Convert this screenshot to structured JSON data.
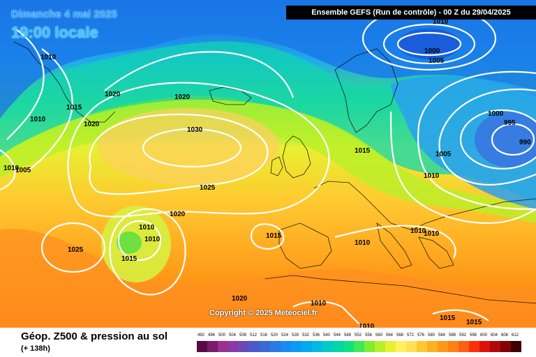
{
  "header": {
    "date_line": "Dimanche 4 mai 2025",
    "time_line": "19:00 locale",
    "run_info": "Ensemble GEFS  (Run de contrôle)  -  00 Z du 29/04/2025"
  },
  "copyright": "Copyright © 2025 Meteociel.fr",
  "footer": {
    "title": "Géop. Z500 & pression au sol",
    "subtitle": "(+ 138h)"
  },
  "isobar_labels": [
    "1010",
    "1010",
    "1015",
    "1020",
    "1020",
    "1020",
    "1010",
    "1005",
    "1030",
    "1025",
    "1020",
    "1010",
    "1010",
    "1025",
    "1015",
    "1015",
    "1020",
    "1010",
    "1015",
    "1010",
    "1010",
    "1005",
    "1000",
    "1010",
    "1000",
    "995",
    "990",
    "1005",
    "1010",
    "1010",
    "1015",
    "1015",
    "1010"
  ],
  "color_scale": {
    "labels": [
      "492",
      "496",
      "500",
      "504",
      "508",
      "512",
      "516",
      "520",
      "524",
      "528",
      "532",
      "536",
      "540",
      "544",
      "548",
      "552",
      "556",
      "560",
      "564",
      "568",
      "572",
      "576",
      "580",
      "584",
      "588",
      "592",
      "596",
      "600",
      "604",
      "608",
      "612"
    ],
    "colors": [
      "#5a0a46",
      "#7a1d6a",
      "#9c2f90",
      "#8a3aa8",
      "#6a4ab8",
      "#4a5acc",
      "#3a6ad8",
      "#2a7ae8",
      "#1a8af4",
      "#0a9af8",
      "#00aaf0",
      "#00bae0",
      "#00cac8",
      "#00d6a8",
      "#10e080",
      "#40e858",
      "#80ee30",
      "#b8f028",
      "#e8f030",
      "#fff060",
      "#ffe050",
      "#ffc830",
      "#ffb020",
      "#ff9818",
      "#ff8010",
      "#ff6010",
      "#ff3008",
      "#e01008",
      "#b00808",
      "#800404",
      "#400000"
    ]
  }
}
